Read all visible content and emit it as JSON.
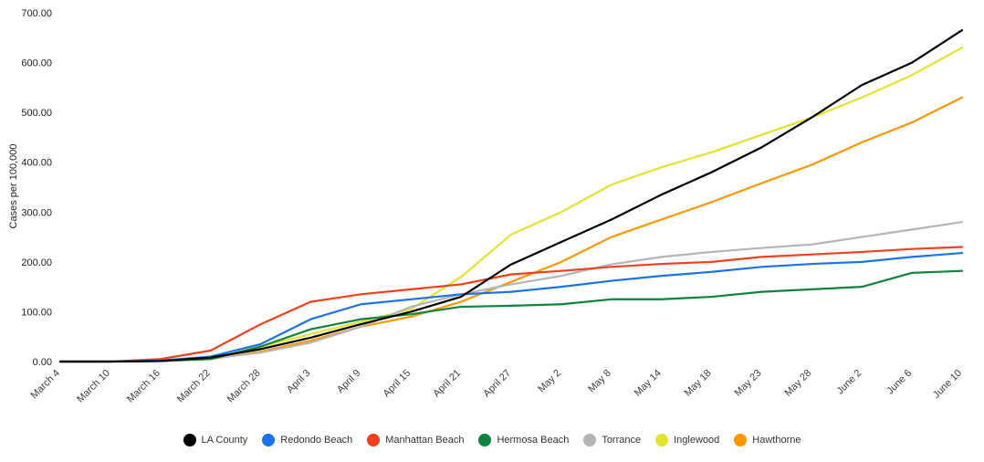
{
  "chart_data": {
    "type": "line",
    "title": "",
    "xlabel": "",
    "ylabel": "Cases per 100,000",
    "ylim": [
      0,
      700
    ],
    "ytick_step": 100,
    "ytick_format": "two_decimals",
    "grid": false,
    "legend_position": "bottom",
    "categories": [
      "March 4",
      "March 10",
      "March 16",
      "March 22",
      "March 28",
      "April 3",
      "April 9",
      "April 15",
      "April 21",
      "April 27",
      "May 2",
      "May 8",
      "May 14",
      "May 18",
      "May 23",
      "May 28",
      "June 2",
      "June 6",
      "June 10"
    ],
    "series": [
      {
        "name": "LA County",
        "color": "#000000",
        "values": [
          0,
          0,
          1,
          8,
          25,
          48,
          75,
          100,
          130,
          195,
          240,
          285,
          335,
          380,
          430,
          490,
          555,
          600,
          665
        ]
      },
      {
        "name": "Redondo Beach",
        "color": "#1a73e8",
        "values": [
          0,
          0,
          2,
          10,
          35,
          85,
          115,
          125,
          135,
          140,
          150,
          162,
          172,
          180,
          190,
          196,
          200,
          210,
          218
        ]
      },
      {
        "name": "Manhattan Beach",
        "color": "#f0401e",
        "values": [
          0,
          0,
          5,
          22,
          75,
          120,
          135,
          145,
          155,
          175,
          182,
          190,
          196,
          200,
          210,
          215,
          220,
          226,
          230
        ]
      },
      {
        "name": "Hermosa Beach",
        "color": "#10833f",
        "values": [
          0,
          0,
          1,
          5,
          30,
          65,
          85,
          95,
          110,
          112,
          115,
          125,
          125,
          130,
          140,
          145,
          150,
          178,
          182
        ]
      },
      {
        "name": "Torrance",
        "color": "#b5b5b5",
        "values": [
          0,
          0,
          1,
          6,
          18,
          38,
          70,
          110,
          135,
          155,
          172,
          195,
          210,
          220,
          228,
          235,
          250,
          265,
          280
        ]
      },
      {
        "name": "Inglewood",
        "color": "#e2e431",
        "values": [
          0,
          0,
          1,
          5,
          30,
          55,
          80,
          105,
          170,
          255,
          300,
          355,
          390,
          420,
          455,
          490,
          530,
          575,
          630
        ]
      },
      {
        "name": "Hawthorne",
        "color": "#ff9800",
        "values": [
          0,
          0,
          1,
          5,
          20,
          42,
          70,
          90,
          120,
          160,
          200,
          250,
          285,
          320,
          358,
          395,
          440,
          480,
          530
        ]
      }
    ]
  }
}
